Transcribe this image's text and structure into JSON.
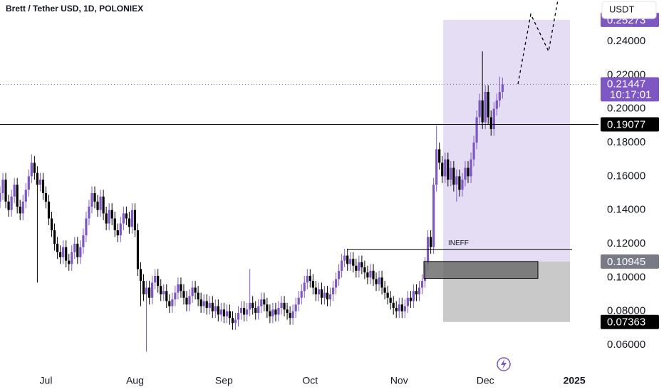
{
  "chart_data": {
    "type": "candlestick",
    "title": "Brett / Tether USD, 1D, POLONIEX",
    "quote": "USDT",
    "up_color": "#7e57c2",
    "down_color": "#000000",
    "open": [
      0.145,
      0.15,
      0.158,
      0.145,
      0.14,
      0.148,
      0.155,
      0.142,
      0.138,
      0.145,
      0.152,
      0.16,
      0.168,
      0.162,
      0.155,
      0.158,
      0.15,
      0.145,
      0.135,
      0.128,
      0.12,
      0.115,
      0.112,
      0.118,
      0.11,
      0.108,
      0.115,
      0.12,
      0.112,
      0.118,
      0.125,
      0.135,
      0.142,
      0.15,
      0.145,
      0.14,
      0.148,
      0.138,
      0.132,
      0.14,
      0.135,
      0.128,
      0.125,
      0.132,
      0.138,
      0.135,
      0.13,
      0.14,
      0.128,
      0.105,
      0.098,
      0.09,
      0.094,
      0.088,
      0.097,
      0.101,
      0.095,
      0.09,
      0.092,
      0.086,
      0.083,
      0.087,
      0.091,
      0.096,
      0.092,
      0.088,
      0.084,
      0.089,
      0.094,
      0.091,
      0.087,
      0.083,
      0.086,
      0.082,
      0.085,
      0.08,
      0.083,
      0.078,
      0.081,
      0.077,
      0.08,
      0.076,
      0.073,
      0.075,
      0.079,
      0.082,
      0.078,
      0.081,
      0.085,
      0.082,
      0.079,
      0.083,
      0.087,
      0.084,
      0.08,
      0.077,
      0.081,
      0.078,
      0.082,
      0.085,
      0.081,
      0.079,
      0.076,
      0.08,
      0.084,
      0.088,
      0.092,
      0.097,
      0.101,
      0.098,
      0.094,
      0.09,
      0.093,
      0.088,
      0.091,
      0.087,
      0.09,
      0.094,
      0.099,
      0.104,
      0.11,
      0.113,
      0.108,
      0.111,
      0.107,
      0.104,
      0.109,
      0.106,
      0.103,
      0.1,
      0.104,
      0.099,
      0.096,
      0.1,
      0.094,
      0.091,
      0.088,
      0.085,
      0.082,
      0.08,
      0.084,
      0.08,
      0.083,
      0.088,
      0.086,
      0.092,
      0.09,
      0.094,
      0.098,
      0.108,
      0.124,
      0.118,
      0.155,
      0.176,
      0.168,
      0.16,
      0.17,
      0.158,
      0.165,
      0.155,
      0.16,
      0.152,
      0.158,
      0.165,
      0.16,
      0.17,
      0.18,
      0.195,
      0.205,
      0.192,
      0.21,
      0.195,
      0.188,
      0.2,
      0.205,
      0.21
    ],
    "high": [
      0.154,
      0.162,
      0.162,
      0.149,
      0.152,
      0.159,
      0.159,
      0.146,
      0.149,
      0.156,
      0.164,
      0.173,
      0.172,
      0.166,
      0.162,
      0.162,
      0.154,
      0.149,
      0.139,
      0.132,
      0.124,
      0.119,
      0.122,
      0.122,
      0.114,
      0.119,
      0.124,
      0.124,
      0.122,
      0.129,
      0.139,
      0.146,
      0.154,
      0.154,
      0.149,
      0.152,
      0.152,
      0.142,
      0.144,
      0.144,
      0.139,
      0.132,
      0.136,
      0.142,
      0.142,
      0.139,
      0.144,
      0.144,
      0.132,
      0.109,
      0.102,
      0.098,
      0.098,
      0.101,
      0.105,
      0.105,
      0.099,
      0.096,
      0.096,
      0.09,
      0.091,
      0.095,
      0.1,
      0.1,
      0.096,
      0.092,
      0.093,
      0.098,
      0.098,
      0.095,
      0.091,
      0.09,
      0.09,
      0.089,
      0.089,
      0.087,
      0.087,
      0.085,
      0.085,
      0.084,
      0.084,
      0.08,
      0.079,
      0.083,
      0.086,
      0.086,
      0.085,
      0.105,
      0.089,
      0.086,
      0.087,
      0.091,
      0.091,
      0.088,
      0.084,
      0.085,
      0.085,
      0.086,
      0.089,
      0.089,
      0.085,
      0.083,
      0.084,
      0.088,
      0.092,
      0.096,
      0.101,
      0.105,
      0.105,
      0.102,
      0.098,
      0.097,
      0.097,
      0.095,
      0.095,
      0.094,
      0.098,
      0.103,
      0.108,
      0.114,
      0.117,
      0.117,
      0.115,
      0.115,
      0.111,
      0.113,
      0.113,
      0.11,
      0.107,
      0.108,
      0.108,
      0.103,
      0.104,
      0.104,
      0.098,
      0.095,
      0.092,
      0.089,
      0.086,
      0.088,
      0.088,
      0.087,
      0.092,
      0.092,
      0.096,
      0.096,
      0.098,
      0.102,
      0.112,
      0.128,
      0.128,
      0.159,
      0.19,
      0.18,
      0.172,
      0.174,
      0.174,
      0.169,
      0.169,
      0.164,
      0.164,
      0.162,
      0.169,
      0.169,
      0.174,
      0.184,
      0.199,
      0.209,
      0.234,
      0.214,
      0.214,
      0.199,
      0.204,
      0.209,
      0.219,
      0.2185
    ],
    "low": [
      0.141,
      0.146,
      0.141,
      0.136,
      0.136,
      0.144,
      0.138,
      0.134,
      0.134,
      0.141,
      0.148,
      0.156,
      0.158,
      0.097,
      0.151,
      0.146,
      0.141,
      0.131,
      0.124,
      0.116,
      0.111,
      0.108,
      0.108,
      0.106,
      0.104,
      0.104,
      0.111,
      0.108,
      0.108,
      0.114,
      0.121,
      0.131,
      0.138,
      0.141,
      0.136,
      0.136,
      0.134,
      0.128,
      0.128,
      0.131,
      0.124,
      0.121,
      0.121,
      0.128,
      0.131,
      0.126,
      0.126,
      0.124,
      0.101,
      0.083,
      0.086,
      0.056,
      0.084,
      0.084,
      0.093,
      0.091,
      0.086,
      0.086,
      0.082,
      0.079,
      0.079,
      0.083,
      0.087,
      0.088,
      0.084,
      0.08,
      0.08,
      0.085,
      0.087,
      0.083,
      0.079,
      0.079,
      0.078,
      0.078,
      0.076,
      0.076,
      0.074,
      0.074,
      0.073,
      0.073,
      0.072,
      0.069,
      0.069,
      0.071,
      0.075,
      0.074,
      0.074,
      0.077,
      0.078,
      0.075,
      0.075,
      0.079,
      0.08,
      0.076,
      0.073,
      0.073,
      0.074,
      0.074,
      0.078,
      0.077,
      0.075,
      0.072,
      0.072,
      0.076,
      0.08,
      0.084,
      0.088,
      0.093,
      0.094,
      0.09,
      0.086,
      0.086,
      0.084,
      0.084,
      0.083,
      0.083,
      0.086,
      0.09,
      0.095,
      0.1,
      0.106,
      0.104,
      0.104,
      0.103,
      0.1,
      0.1,
      0.102,
      0.099,
      0.096,
      0.096,
      0.095,
      0.092,
      0.092,
      0.09,
      0.087,
      0.084,
      0.081,
      0.078,
      0.076,
      0.076,
      0.076,
      0.076,
      0.079,
      0.082,
      0.082,
      0.086,
      0.086,
      0.09,
      0.094,
      0.104,
      0.114,
      0.114,
      0.151,
      0.164,
      0.156,
      0.156,
      0.154,
      0.154,
      0.151,
      0.145,
      0.148,
      0.148,
      0.154,
      0.156,
      0.156,
      0.166,
      0.176,
      0.191,
      0.188,
      0.188,
      0.191,
      0.184,
      0.184,
      0.196,
      0.201,
      0.206
    ],
    "close": [
      0.15,
      0.158,
      0.145,
      0.14,
      0.148,
      0.155,
      0.142,
      0.138,
      0.145,
      0.152,
      0.16,
      0.168,
      0.162,
      0.155,
      0.158,
      0.15,
      0.145,
      0.135,
      0.128,
      0.12,
      0.115,
      0.112,
      0.118,
      0.11,
      0.108,
      0.115,
      0.12,
      0.112,
      0.118,
      0.125,
      0.135,
      0.142,
      0.15,
      0.145,
      0.14,
      0.148,
      0.138,
      0.132,
      0.14,
      0.135,
      0.128,
      0.125,
      0.132,
      0.138,
      0.135,
      0.13,
      0.14,
      0.128,
      0.105,
      0.098,
      0.09,
      0.094,
      0.088,
      0.097,
      0.101,
      0.095,
      0.09,
      0.092,
      0.086,
      0.083,
      0.087,
      0.091,
      0.096,
      0.092,
      0.088,
      0.084,
      0.089,
      0.094,
      0.091,
      0.087,
      0.083,
      0.086,
      0.082,
      0.085,
      0.08,
      0.083,
      0.078,
      0.081,
      0.077,
      0.08,
      0.076,
      0.073,
      0.075,
      0.079,
      0.082,
      0.078,
      0.081,
      0.085,
      0.082,
      0.079,
      0.083,
      0.087,
      0.084,
      0.08,
      0.077,
      0.081,
      0.078,
      0.082,
      0.085,
      0.081,
      0.079,
      0.076,
      0.08,
      0.084,
      0.088,
      0.092,
      0.097,
      0.101,
      0.098,
      0.094,
      0.09,
      0.093,
      0.088,
      0.091,
      0.087,
      0.09,
      0.094,
      0.099,
      0.104,
      0.11,
      0.113,
      0.108,
      0.111,
      0.107,
      0.104,
      0.109,
      0.106,
      0.103,
      0.1,
      0.104,
      0.099,
      0.096,
      0.1,
      0.094,
      0.091,
      0.088,
      0.085,
      0.082,
      0.08,
      0.084,
      0.08,
      0.083,
      0.088,
      0.086,
      0.092,
      0.09,
      0.094,
      0.098,
      0.108,
      0.124,
      0.118,
      0.155,
      0.176,
      0.168,
      0.16,
      0.17,
      0.158,
      0.165,
      0.155,
      0.16,
      0.152,
      0.158,
      0.165,
      0.16,
      0.17,
      0.18,
      0.195,
      0.205,
      0.192,
      0.21,
      0.195,
      0.188,
      0.2,
      0.205,
      0.21,
      0.21447
    ],
    "last_label": "0.21447",
    "countdown": "10:17:01",
    "xlim": [
      0,
      208.4
    ],
    "xticks": [
      {
        "value": 16,
        "label": "Jul"
      },
      {
        "value": 47,
        "label": "Aug"
      },
      {
        "value": 78,
        "label": "Sep"
      },
      {
        "value": 108,
        "label": "Oct"
      },
      {
        "value": 139,
        "label": "Nov"
      },
      {
        "value": 169,
        "label": "Dec"
      },
      {
        "value": 200,
        "label": "2025"
      }
    ],
    "ylim": [
      0.0448,
      0.2645
    ],
    "yticks": [
      {
        "value": 0.06,
        "label": "0.06000"
      },
      {
        "value": 0.08,
        "label": "0.08000"
      },
      {
        "value": 0.1,
        "label": "0.10000"
      },
      {
        "value": 0.12,
        "label": "0.12000"
      },
      {
        "value": 0.14,
        "label": "0.14000"
      },
      {
        "value": 0.16,
        "label": "0.16000"
      },
      {
        "value": 0.18,
        "label": "0.18000"
      },
      {
        "value": 0.2,
        "label": "0.20000"
      },
      {
        "value": 0.22,
        "label": "0.22000"
      },
      {
        "value": 0.24,
        "label": "0.24000"
      }
    ],
    "horizontal_line": 0.19077,
    "position": {
      "target": 0.25273,
      "entry": 0.10945,
      "stop": 0.07363,
      "color": "#7e57c2"
    },
    "imbalance_zone": [
      0.0995,
      0.1095
    ],
    "annotation": {
      "label": "INEFF",
      "value": 0.1165
    }
  }
}
